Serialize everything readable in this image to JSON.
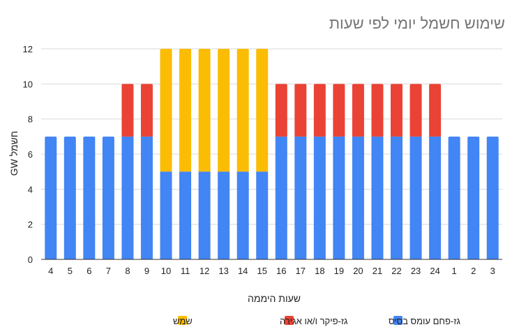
{
  "chart_data": {
    "type": "bar",
    "stacked": true,
    "title": "שימוש חשמל יומי לפי שעות",
    "xlabel": "שעות היממה",
    "ylabel": "GW חשמל",
    "ylim": [
      0,
      12
    ],
    "yticks": [
      "0",
      "2",
      "4",
      "6",
      "8",
      "10",
      "12"
    ],
    "grid": true,
    "legend_position": "bottom",
    "categories": [
      "4",
      "5",
      "6",
      "7",
      "8",
      "9",
      "10",
      "11",
      "12",
      "13",
      "14",
      "15",
      "16",
      "17",
      "18",
      "19",
      "20",
      "21",
      "22",
      "23",
      "24",
      "1",
      "2",
      "3"
    ],
    "series": [
      {
        "name": "גז-פחם עומס בסיס",
        "color": "#4285F4",
        "values": [
          7,
          7,
          7,
          7,
          7,
          7,
          5,
          5,
          5,
          5,
          5,
          5,
          7,
          7,
          7,
          7,
          7,
          7,
          7,
          7,
          7,
          7,
          7,
          7
        ]
      },
      {
        "name": "גז-פיקר ו/או אגירה",
        "color": "#EA4335",
        "values": [
          0,
          0,
          0,
          0,
          3,
          3,
          0,
          0,
          0,
          0,
          0,
          0,
          3,
          3,
          3,
          3,
          3,
          3,
          3,
          3,
          3,
          0,
          0,
          0
        ]
      },
      {
        "name": "שמש",
        "color": "#FBBC04",
        "values": [
          0,
          0,
          0,
          0,
          0,
          0,
          7,
          7,
          7,
          7,
          7,
          7,
          0,
          0,
          0,
          0,
          0,
          0,
          0,
          0,
          0,
          0,
          0,
          0
        ]
      }
    ]
  }
}
